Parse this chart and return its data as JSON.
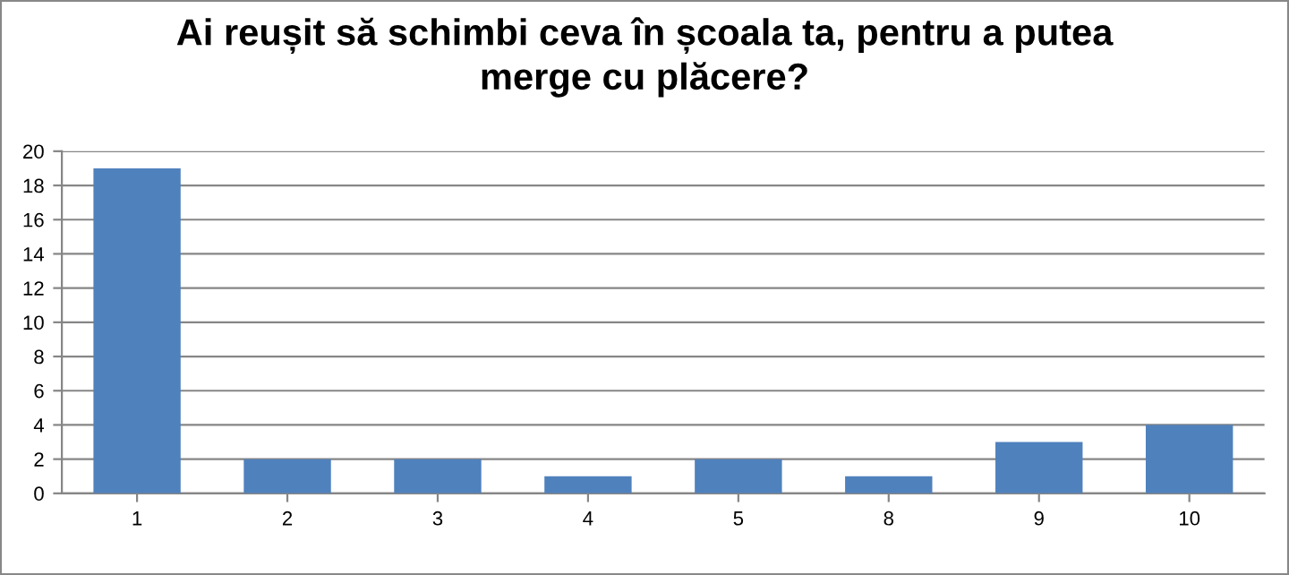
{
  "chart_data": {
    "type": "bar",
    "title": "Ai reușit să schimbi ceva în școala ta, pentru a putea\nmerge cu plăcere?",
    "categories": [
      "1",
      "2",
      "3",
      "4",
      "5",
      "8",
      "9",
      "10"
    ],
    "values": [
      19,
      2,
      2,
      1,
      2,
      1,
      3,
      4
    ],
    "color": "#4f81bd",
    "ylim": [
      0,
      20
    ],
    "yticks": [
      0,
      2,
      4,
      6,
      8,
      10,
      12,
      14,
      16,
      18,
      20
    ],
    "grid": "y"
  }
}
